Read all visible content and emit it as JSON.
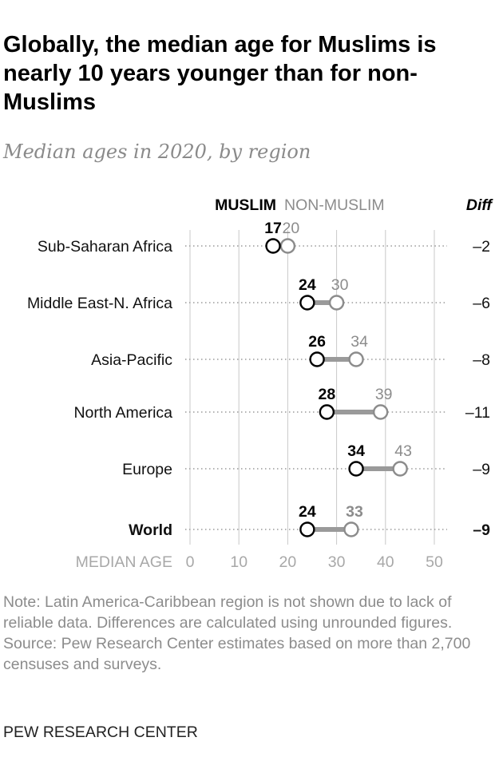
{
  "header": {
    "title": "Globally, the median age for Muslims is nearly 10 years younger than for non-Muslims",
    "subtitle": "Median ages in 2020, by region"
  },
  "colors": {
    "muslim": "#000000",
    "non_muslim": "#8c8c8c",
    "connector": "#9a9a9a",
    "grid": "#c8c8c8",
    "dotted_guide": "#9a9a9a"
  },
  "chart_data": {
    "type": "dot-plot",
    "legend": {
      "muslim": "MUSLIM",
      "non_muslim": "NON-MUSLIM",
      "diff": "Diff"
    },
    "xlabel": "MEDIAN AGE",
    "xlim": [
      0,
      50
    ],
    "ticks": [
      0,
      10,
      20,
      30,
      40,
      50
    ],
    "grid": true,
    "rows": [
      {
        "region": "Sub-Saharan Africa",
        "muslim": 17,
        "non_muslim": 20,
        "diff": "–2",
        "bold": false
      },
      {
        "region": "Middle East-N. Africa",
        "muslim": 24,
        "non_muslim": 30,
        "diff": "–6",
        "bold": false
      },
      {
        "region": "Asia-Pacific",
        "muslim": 26,
        "non_muslim": 34,
        "diff": "–8",
        "bold": false
      },
      {
        "region": "North America",
        "muslim": 28,
        "non_muslim": 39,
        "diff": "–11",
        "bold": false
      },
      {
        "region": "Europe",
        "muslim": 34,
        "non_muslim": 43,
        "diff": "–9",
        "bold": false
      },
      {
        "region": "World",
        "muslim": 24,
        "non_muslim": 33,
        "diff": "–9",
        "bold": true
      }
    ]
  },
  "note": {
    "text": "Note: Latin America-Caribbean region is not shown due to lack of reliable data. Differences are calculated using unrounded figures.",
    "source": "Source: Pew Research Center estimates based on more than 2,700 censuses and surveys."
  },
  "footer": {
    "credit": "PEW RESEARCH CENTER"
  }
}
